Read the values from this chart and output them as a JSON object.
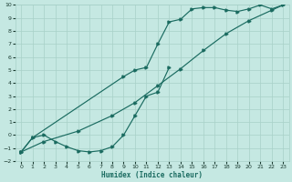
{
  "xlabel": "Humidex (Indice chaleur)",
  "xlim": [
    -0.5,
    23.5
  ],
  "ylim": [
    -2,
    10
  ],
  "xticks": [
    0,
    1,
    2,
    3,
    4,
    5,
    6,
    7,
    8,
    9,
    10,
    11,
    12,
    13,
    14,
    15,
    16,
    17,
    18,
    19,
    20,
    21,
    22,
    23
  ],
  "yticks": [
    -2,
    -1,
    0,
    1,
    2,
    3,
    4,
    5,
    6,
    7,
    8,
    9,
    10
  ],
  "bg_color": "#c5e8e2",
  "grid_color": "#a8d0c8",
  "line_color": "#1a6b60",
  "curve1_x": [
    0,
    1,
    2,
    3,
    4,
    5,
    6,
    7,
    8,
    9,
    10,
    11,
    12,
    13
  ],
  "curve1_y": [
    -1.3,
    -0.2,
    0.0,
    -0.5,
    -0.9,
    -1.2,
    -1.3,
    -1.2,
    -0.9,
    0.0,
    1.5,
    3.0,
    3.3,
    5.2
  ],
  "curve2_x": [
    0,
    1,
    9,
    10,
    11,
    12,
    13,
    14,
    15,
    16,
    17,
    18,
    19,
    20,
    21,
    22,
    23
  ],
  "curve2_y": [
    -1.3,
    -0.2,
    4.5,
    5.0,
    5.2,
    7.0,
    8.7,
    8.9,
    9.7,
    9.8,
    9.8,
    9.6,
    9.5,
    9.7,
    10.0,
    9.7,
    10.0
  ],
  "curve3_x": [
    0,
    2,
    5,
    8,
    10,
    12,
    14,
    16,
    18,
    20,
    22,
    23
  ],
  "curve3_y": [
    -1.3,
    -0.5,
    0.3,
    1.5,
    2.5,
    3.8,
    5.1,
    6.5,
    7.8,
    8.8,
    9.6,
    10.0
  ]
}
